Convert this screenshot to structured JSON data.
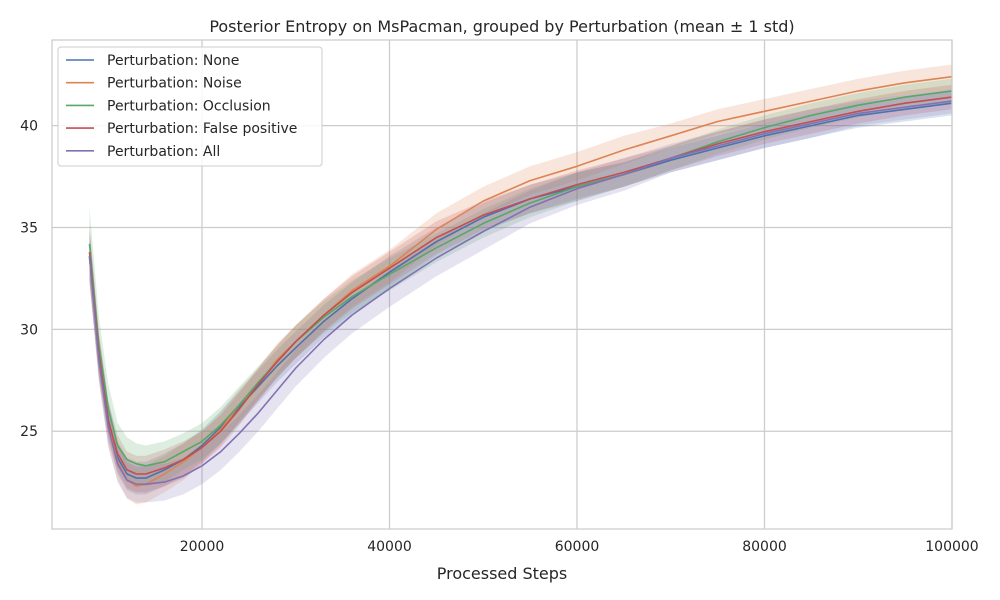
{
  "chart_data": {
    "type": "line",
    "title": "Posterior Entropy on MsPacman, grouped by Perturbation (mean ± 1 std)",
    "xlabel": "Processed Steps",
    "ylabel": "",
    "xlim": [
      4000,
      100000
    ],
    "ylim": [
      20.2,
      44.2
    ],
    "xticks": [
      20000,
      40000,
      60000,
      80000,
      100000
    ],
    "xtick_labels": [
      "20000",
      "40000",
      "60000",
      "80000",
      "100000"
    ],
    "yticks": [
      25,
      30,
      35,
      40
    ],
    "ytick_labels": [
      "25",
      "30",
      "35",
      "40"
    ],
    "grid": true,
    "legend_position": "top-left",
    "band": "mean ± 1 std",
    "x": [
      8000,
      9000,
      10000,
      11000,
      12000,
      13000,
      14000,
      16000,
      18000,
      20000,
      22000,
      24000,
      26000,
      28000,
      30000,
      33000,
      36000,
      40000,
      45000,
      50000,
      55000,
      60000,
      65000,
      70000,
      75000,
      80000,
      85000,
      90000,
      95000,
      100000
    ],
    "series": [
      {
        "name": "Perturbation: None",
        "color": "#4c72b0",
        "values": [
          33.6,
          28.7,
          25.6,
          23.7,
          22.9,
          22.7,
          22.7,
          23.1,
          23.6,
          24.3,
          25.2,
          26.2,
          27.2,
          28.2,
          29.1,
          30.4,
          31.5,
          32.8,
          34.3,
          35.5,
          36.4,
          37.0,
          37.6,
          38.3,
          38.9,
          39.5,
          40.0,
          40.5,
          40.8,
          41.1
        ],
        "std": [
          1.2,
          1.0,
          0.9,
          0.8,
          0.8,
          0.8,
          0.8,
          0.8,
          0.8,
          0.8,
          0.8,
          0.8,
          0.8,
          0.8,
          0.8,
          0.8,
          0.8,
          0.8,
          0.7,
          0.7,
          0.7,
          0.7,
          0.6,
          0.6,
          0.6,
          0.6,
          0.6,
          0.6,
          0.6,
          0.6
        ]
      },
      {
        "name": "Perturbation: Noise",
        "color": "#dd8452",
        "values": [
          33.5,
          28.6,
          25.3,
          23.5,
          22.6,
          22.3,
          22.4,
          22.9,
          23.5,
          24.2,
          25.1,
          26.3,
          27.3,
          28.5,
          29.4,
          30.7,
          31.9,
          33.1,
          34.9,
          36.3,
          37.3,
          38.0,
          38.8,
          39.5,
          40.2,
          40.7,
          41.2,
          41.7,
          42.1,
          42.4
        ],
        "std": [
          1.2,
          1.1,
          1.0,
          0.9,
          0.9,
          0.9,
          0.9,
          0.9,
          0.9,
          0.8,
          0.8,
          0.8,
          0.8,
          0.8,
          0.8,
          0.8,
          0.8,
          0.8,
          0.8,
          0.7,
          0.7,
          0.7,
          0.7,
          0.6,
          0.6,
          0.6,
          0.6,
          0.6,
          0.6,
          0.6
        ]
      },
      {
        "name": "Perturbation: Occlusion",
        "color": "#55a868",
        "values": [
          34.2,
          29.2,
          26.1,
          24.3,
          23.6,
          23.4,
          23.3,
          23.5,
          24.0,
          24.5,
          25.3,
          26.3,
          27.4,
          28.4,
          29.4,
          30.6,
          31.6,
          32.7,
          34.0,
          35.2,
          36.2,
          37.0,
          37.6,
          38.4,
          39.2,
          39.9,
          40.5,
          41.0,
          41.4,
          41.7
        ],
        "std": [
          1.8,
          1.4,
          1.2,
          1.1,
          1.1,
          1.0,
          1.0,
          1.0,
          0.9,
          0.9,
          0.9,
          0.9,
          0.8,
          0.8,
          0.8,
          0.8,
          0.8,
          0.8,
          0.7,
          0.7,
          0.7,
          0.7,
          0.6,
          0.6,
          0.6,
          0.6,
          0.6,
          0.6,
          0.6,
          0.6
        ]
      },
      {
        "name": "Perturbation: False positive",
        "color": "#c44e52",
        "values": [
          33.8,
          28.8,
          25.5,
          23.9,
          23.1,
          22.9,
          22.9,
          23.2,
          23.6,
          24.2,
          25.0,
          26.1,
          27.3,
          28.4,
          29.4,
          30.7,
          31.8,
          33.0,
          34.5,
          35.6,
          36.4,
          37.1,
          37.7,
          38.4,
          39.1,
          39.7,
          40.2,
          40.7,
          41.1,
          41.4
        ],
        "std": [
          1.3,
          1.1,
          1.0,
          0.9,
          0.9,
          0.9,
          0.9,
          0.9,
          0.9,
          0.8,
          0.8,
          0.8,
          0.8,
          0.8,
          0.8,
          0.8,
          0.8,
          0.8,
          0.8,
          0.7,
          0.7,
          0.7,
          0.7,
          0.6,
          0.6,
          0.6,
          0.6,
          0.6,
          0.6,
          0.6
        ]
      },
      {
        "name": "Perturbation: All",
        "color": "#8172b3",
        "values": [
          33.6,
          28.5,
          25.2,
          23.4,
          22.6,
          22.4,
          22.4,
          22.5,
          22.8,
          23.3,
          24.0,
          24.9,
          25.9,
          27.0,
          28.1,
          29.5,
          30.7,
          32.0,
          33.5,
          34.8,
          36.0,
          36.9,
          37.6,
          38.4,
          39.0,
          39.6,
          40.1,
          40.6,
          40.9,
          41.2
        ],
        "std": [
          1.3,
          1.1,
          1.0,
          0.9,
          0.9,
          0.9,
          0.9,
          0.9,
          0.9,
          0.9,
          0.9,
          0.9,
          0.9,
          0.9,
          0.9,
          0.9,
          0.9,
          0.9,
          0.9,
          0.9,
          0.8,
          0.8,
          0.8,
          0.7,
          0.7,
          0.7,
          0.7,
          0.6,
          0.6,
          0.6
        ]
      }
    ]
  }
}
